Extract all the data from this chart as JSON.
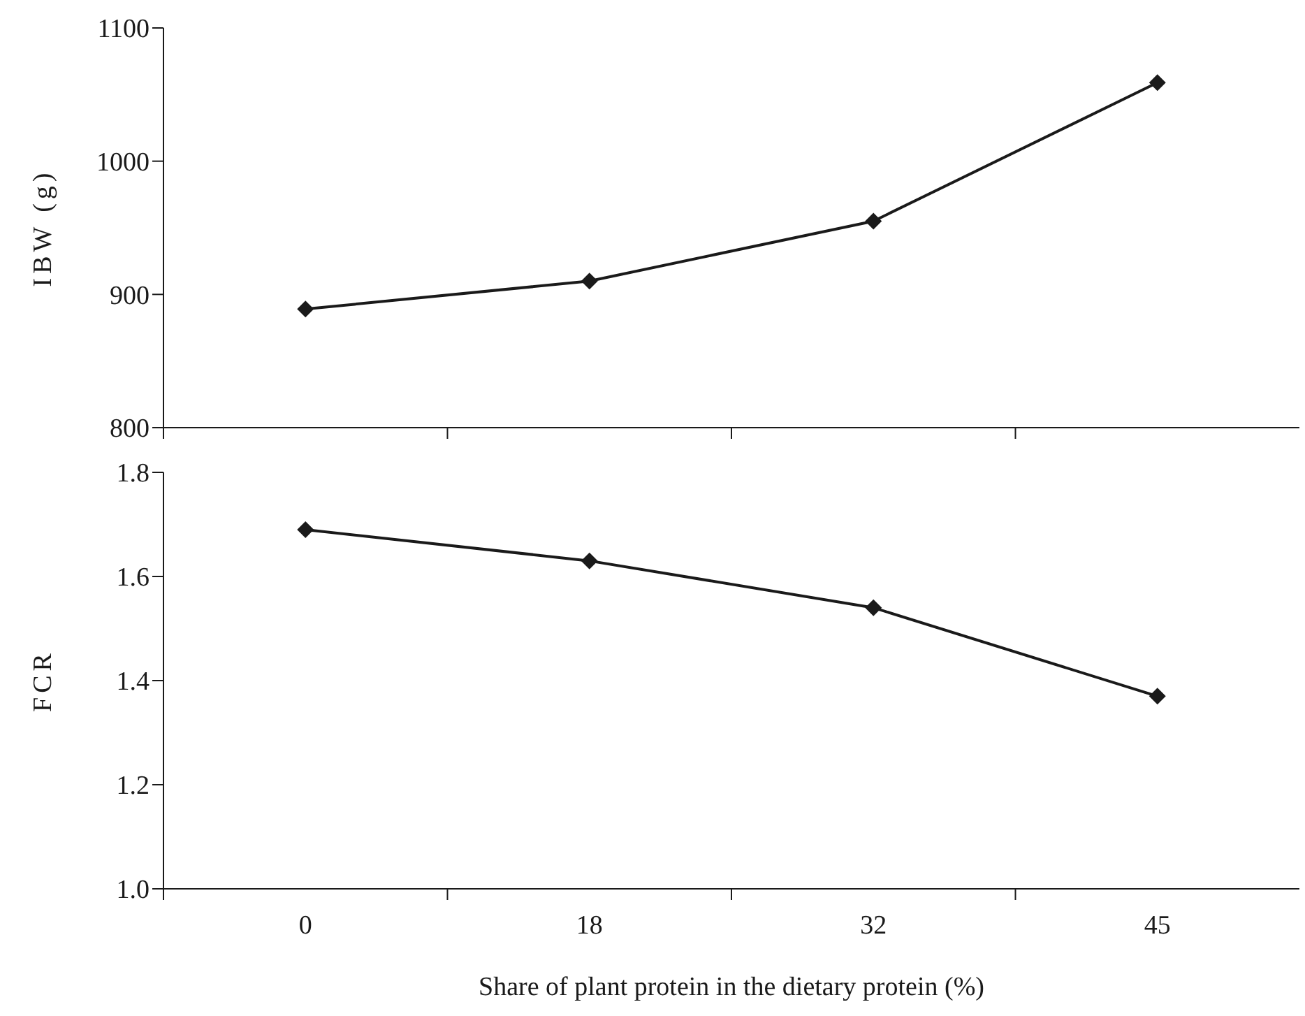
{
  "chart_data": [
    {
      "type": "line",
      "ylabel": "IBW (g)",
      "categories": [
        "0",
        "18",
        "32",
        "45"
      ],
      "values": [
        889,
        910,
        955,
        1059
      ],
      "color": "#1a1a1a",
      "ylim": [
        800,
        1100
      ],
      "yticks": [
        800,
        900,
        1000,
        1100
      ],
      "tick_labels": "y",
      "marker": "diamond",
      "line_style": "solid"
    },
    {
      "type": "line",
      "ylabel": "FCR",
      "xlabel": "Share of plant protein in the dietary protein (%)",
      "categories": [
        "0",
        "18",
        "32",
        "45"
      ],
      "values": [
        1.69,
        1.63,
        1.54,
        1.37
      ],
      "color": "#1a1a1a",
      "ylim": [
        1.0,
        1.8
      ],
      "yticks": [
        {
          "value": 1.0,
          "label": "1.0"
        },
        1.2,
        1.4,
        1.6,
        1.8
      ],
      "marker": "diamond",
      "line_style": "solid"
    }
  ]
}
